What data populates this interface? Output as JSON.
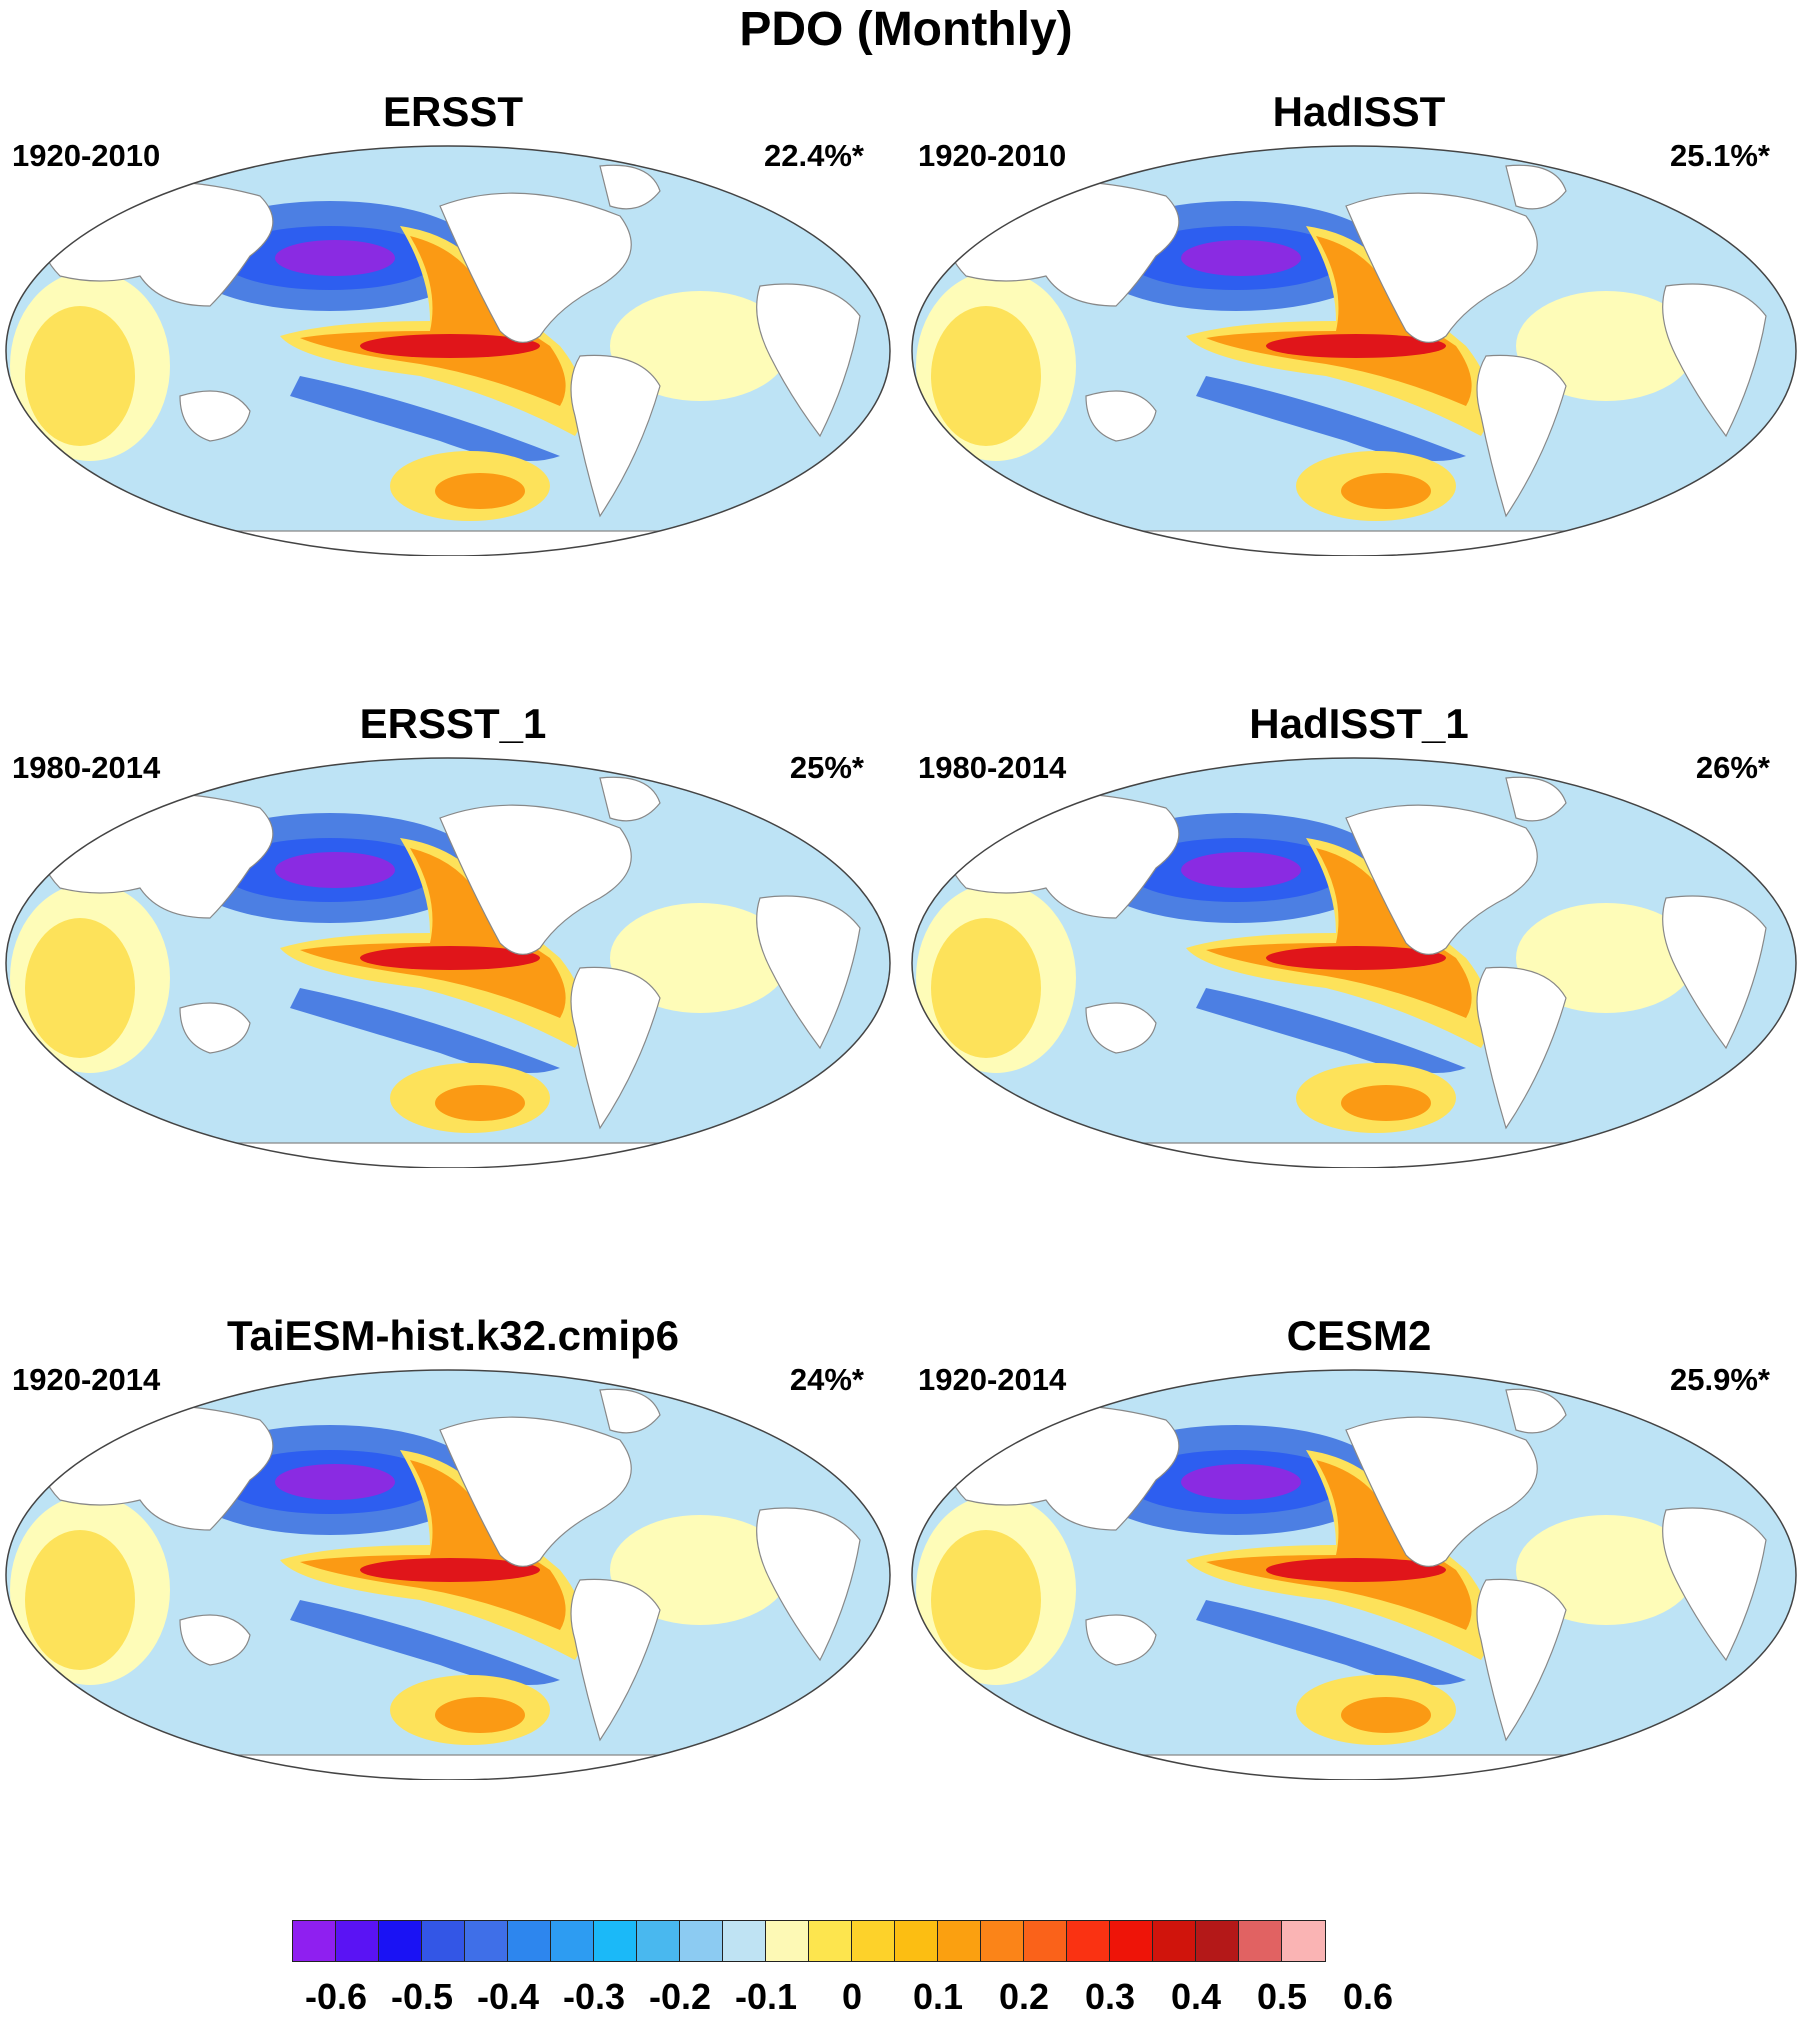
{
  "title": "PDO (Monthly)",
  "colors": {
    "strong_negative": "#8a2be2",
    "negative": "#4c7fe3",
    "weak_negative": "#bde3f5",
    "zero": "#fefcb8",
    "weak_positive": "#fde25a",
    "positive": "#fb9a14",
    "strong_positive": "#e0151a",
    "land": "#ffffff"
  },
  "panels": [
    {
      "title": "ERSST",
      "period": "1920-2010",
      "variance": "22.4%*"
    },
    {
      "title": "HadISST",
      "period": "1920-2010",
      "variance": "25.1%*"
    },
    {
      "title": "ERSST_1",
      "period": "1980-2014",
      "variance": "25%*"
    },
    {
      "title": "HadISST_1",
      "period": "1980-2014",
      "variance": "26%*"
    },
    {
      "title": "TaiESM-hist.k32.cmip6",
      "period": "1920-2014",
      "variance": "24%*"
    },
    {
      "title": "CESM2",
      "period": "1920-2014",
      "variance": "25.9%*"
    }
  ],
  "colorbar": {
    "colors": [
      "#8f1ff0",
      "#5a13f4",
      "#1a12f4",
      "#3356e6",
      "#3f6fe8",
      "#2d86ee",
      "#2d9cf2",
      "#1bb9f8",
      "#49b8ef",
      "#8ccbf2",
      "#bfe3f3",
      "#fdf9b5",
      "#fde54e",
      "#fdd22a",
      "#fcbe12",
      "#fba010",
      "#fb8418",
      "#fa621a",
      "#fa3212",
      "#ee1408",
      "#d0140c",
      "#b41818",
      "#e16262",
      "#fab4b4"
    ],
    "labels": [
      "-0.6",
      "-0.5",
      "-0.4",
      "-0.3",
      "-0.2",
      "-0.1",
      "0",
      "0.1",
      "0.2",
      "0.3",
      "0.4",
      "0.5",
      "0.6"
    ]
  }
}
